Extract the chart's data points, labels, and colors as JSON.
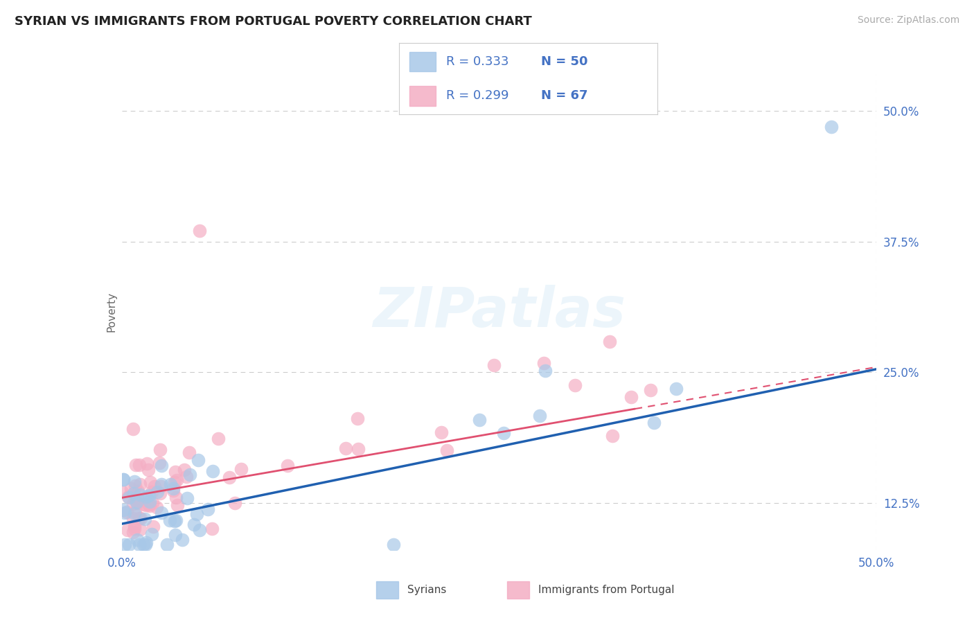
{
  "title": "SYRIAN VS IMMIGRANTS FROM PORTUGAL POVERTY CORRELATION CHART",
  "source": "Source: ZipAtlas.com",
  "ylabel": "Poverty",
  "xlim": [
    0.0,
    0.5
  ],
  "ylim": [
    0.08,
    0.535
  ],
  "yticks": [
    0.125,
    0.25,
    0.375,
    0.5
  ],
  "yticklabels": [
    "12.5%",
    "25.0%",
    "37.5%",
    "50.0%"
  ],
  "blue_color": "#a8c8e8",
  "pink_color": "#f4aec4",
  "blue_line_color": "#2060b0",
  "pink_line_color": "#e05070",
  "title_fontsize": 13,
  "axis_label_fontsize": 11,
  "tick_fontsize": 12,
  "source_fontsize": 10,
  "background_color": "#ffffff",
  "grid_color": "#cccccc",
  "blue_r": 0.333,
  "blue_n": 50,
  "pink_r": 0.299,
  "pink_n": 67,
  "blue_line_start_x": 0.0,
  "blue_line_start_y": 0.105,
  "blue_line_end_x": 0.5,
  "blue_line_end_y": 0.253,
  "pink_line_solid_start_x": 0.0,
  "pink_line_solid_start_y": 0.13,
  "pink_line_solid_end_x": 0.34,
  "pink_line_solid_end_y": 0.215,
  "pink_line_dash_end_x": 0.5,
  "pink_line_dash_end_y": 0.255,
  "watermark_text": "ZIPatlas",
  "legend_r1": "R = 0.333",
  "legend_n1": "N = 50",
  "legend_r2": "R = 0.299",
  "legend_n2": "N = 67"
}
